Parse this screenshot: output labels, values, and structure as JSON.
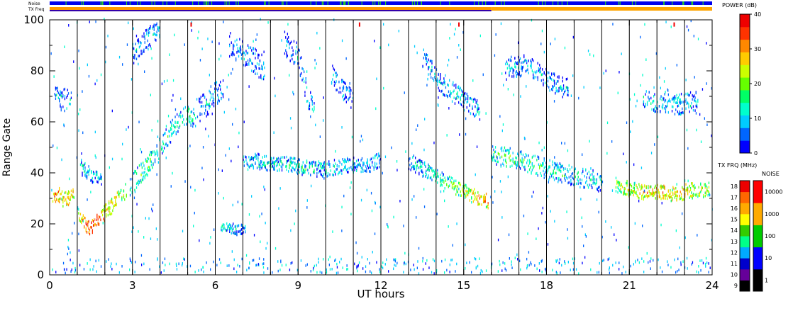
{
  "chart_data": {
    "type": "heatmap",
    "xlabel": "UT hours",
    "ylabel": "Range Gate",
    "xlim": [
      0,
      24
    ],
    "ylim": [
      0,
      100
    ],
    "xticks": [
      0,
      3,
      6,
      9,
      12,
      15,
      18,
      21,
      24
    ],
    "yticks": [
      0,
      20,
      40,
      60,
      80,
      100
    ],
    "scan_boundaries_ut": [
      1,
      2,
      3,
      4,
      5,
      6,
      7,
      8,
      9,
      10,
      11,
      12,
      13,
      14,
      15,
      16,
      17,
      18,
      19,
      20,
      21,
      22,
      23
    ],
    "top_bars": {
      "noise_label": "Noise",
      "txfreq_label": "TX Freq",
      "txfreq_segments": [
        {
          "start": 0,
          "end": 16,
          "color": "#ff9900"
        },
        {
          "start": 16,
          "end": 24,
          "color": "#ffa500"
        }
      ],
      "noise_color": "#0000ee",
      "noise_spike_color": "#22cc22"
    },
    "power_scale": {
      "title": "POWER (dB)",
      "ticks": [
        0,
        10,
        20,
        30,
        40
      ],
      "colors": [
        "#0000ff",
        "#0066ff",
        "#00ccff",
        "#00ffcc",
        "#00ff66",
        "#66ff00",
        "#ccff00",
        "#ffcc00",
        "#ff8800",
        "#ff3300",
        "#ee0000"
      ]
    },
    "txfreq_scale": {
      "title": "TX FRQ (MHz)",
      "ticks": [
        9,
        10,
        11,
        12,
        13,
        14,
        15,
        16,
        17,
        18
      ],
      "colors": [
        "#000000",
        "#660099",
        "#0000cc",
        "#00aaff",
        "#00ff88",
        "#33cc00",
        "#ffff00",
        "#ffaa00",
        "#ff6600",
        "#ee0000"
      ]
    },
    "noise_scale": {
      "title": "NOISE",
      "ticks": [
        "1",
        "10",
        "100",
        "1000",
        "10000"
      ],
      "colors": [
        "#000000",
        "#0000ff",
        "#00cc00",
        "#ffaa00",
        "#ff0000"
      ]
    },
    "series": [
      {
        "points": [
          [
            0.1,
            30,
            32
          ],
          [
            0.3,
            31,
            30
          ],
          [
            0.5,
            29,
            28
          ],
          [
            0.7,
            30,
            30
          ],
          [
            0.9,
            32,
            26
          ]
        ],
        "spread": 3
      },
      {
        "points": [
          [
            1.0,
            24,
            18
          ],
          [
            1.2,
            20,
            34
          ],
          [
            1.4,
            18,
            38
          ],
          [
            1.6,
            19,
            36
          ],
          [
            1.8,
            21,
            34
          ],
          [
            2.0,
            24,
            30
          ],
          [
            2.2,
            26,
            28
          ],
          [
            2.4,
            29,
            26
          ],
          [
            2.6,
            31,
            24
          ],
          [
            2.8,
            33,
            20
          ]
        ],
        "spread": 3
      },
      {
        "points": [
          [
            2.9,
            34,
            14
          ],
          [
            3.2,
            38,
            16
          ],
          [
            3.5,
            42,
            18
          ],
          [
            3.8,
            46,
            14
          ],
          [
            4.1,
            51,
            12
          ],
          [
            4.4,
            56,
            14
          ],
          [
            4.7,
            60,
            12
          ],
          [
            5.0,
            62,
            16
          ],
          [
            5.3,
            60,
            12
          ]
        ],
        "spread": 4
      },
      {
        "points": [
          [
            5.4,
            64,
            12
          ],
          [
            5.7,
            67,
            10
          ],
          [
            6.0,
            70,
            10
          ],
          [
            6.3,
            72,
            8
          ]
        ],
        "spread": 5
      },
      {
        "points": [
          [
            0.2,
            70,
            10
          ],
          [
            0.4,
            68,
            10
          ],
          [
            0.6,
            72,
            8
          ],
          [
            0.8,
            66,
            8
          ]
        ],
        "spread": 4
      },
      {
        "points": [
          [
            1.1,
            42,
            8
          ],
          [
            1.3,
            40,
            10
          ],
          [
            1.6,
            38,
            8
          ],
          [
            1.9,
            36,
            10
          ]
        ],
        "spread": 3
      },
      {
        "points": [
          [
            7.0,
            43,
            10
          ],
          [
            7.5,
            44,
            12
          ],
          [
            8.0,
            43,
            10
          ],
          [
            8.5,
            43,
            12
          ],
          [
            9.0,
            42,
            12
          ],
          [
            9.5,
            41,
            12
          ],
          [
            10.0,
            41,
            10
          ],
          [
            10.5,
            42,
            10
          ],
          [
            11.0,
            43,
            10
          ],
          [
            11.5,
            42,
            8
          ],
          [
            12.0,
            45,
            8
          ]
        ],
        "spread": 3
      },
      {
        "points": [
          [
            13.0,
            44,
            10
          ],
          [
            13.5,
            41,
            12
          ],
          [
            14.0,
            38,
            14
          ],
          [
            14.5,
            35,
            18
          ],
          [
            15.0,
            32,
            24
          ],
          [
            15.5,
            30,
            28
          ],
          [
            15.9,
            28,
            30
          ]
        ],
        "spread": 3
      },
      {
        "points": [
          [
            16.0,
            46,
            14
          ],
          [
            16.5,
            46,
            16
          ],
          [
            17.0,
            45,
            16
          ],
          [
            17.5,
            43,
            14
          ],
          [
            18.0,
            41,
            14
          ],
          [
            18.5,
            39,
            12
          ],
          [
            19.0,
            38,
            12
          ],
          [
            19.5,
            37,
            10
          ],
          [
            20.0,
            36,
            12
          ]
        ],
        "spread": 4
      },
      {
        "points": [
          [
            20.5,
            35,
            20
          ],
          [
            21.0,
            33,
            26
          ],
          [
            21.5,
            32,
            28
          ],
          [
            22.0,
            32,
            30
          ],
          [
            22.5,
            31,
            28
          ],
          [
            23.0,
            32,
            26
          ],
          [
            23.5,
            33,
            24
          ],
          [
            23.9,
            33,
            22
          ]
        ],
        "spread": 3
      },
      {
        "points": [
          [
            6.2,
            18,
            10
          ],
          [
            6.5,
            18,
            10
          ],
          [
            6.8,
            17,
            8
          ],
          [
            7.1,
            18,
            8
          ]
        ],
        "spread": 2
      },
      {
        "points": [
          [
            8.5,
            90,
            8
          ],
          [
            9.0,
            85,
            10
          ],
          [
            9.3,
            70,
            10
          ],
          [
            9.6,
            62,
            12
          ]
        ],
        "spread": 5
      },
      {
        "points": [
          [
            10.2,
            78,
            8
          ],
          [
            10.6,
            72,
            8
          ],
          [
            11.0,
            68,
            8
          ]
        ],
        "spread": 4
      },
      {
        "points": [
          [
            13.5,
            85,
            8
          ],
          [
            14.2,
            74,
            10
          ],
          [
            15.0,
            68,
            10
          ],
          [
            15.6,
            63,
            8
          ]
        ],
        "spread": 4
      },
      {
        "points": [
          [
            16.5,
            80,
            8
          ],
          [
            17.3,
            82,
            8
          ],
          [
            18.0,
            76,
            8
          ],
          [
            18.8,
            72,
            8
          ]
        ],
        "spread": 4
      },
      {
        "points": [
          [
            21.5,
            68,
            10
          ],
          [
            22.5,
            66,
            10
          ],
          [
            23.5,
            68,
            10
          ]
        ],
        "spread": 4
      },
      {
        "points": [
          [
            3.0,
            86,
            8
          ],
          [
            3.5,
            92,
            8
          ],
          [
            4.0,
            96,
            8
          ]
        ],
        "spread": 4
      },
      {
        "points": [
          [
            6.5,
            90,
            6
          ],
          [
            7.2,
            85,
            8
          ],
          [
            7.8,
            80,
            8
          ]
        ],
        "spread": 5
      }
    ]
  }
}
